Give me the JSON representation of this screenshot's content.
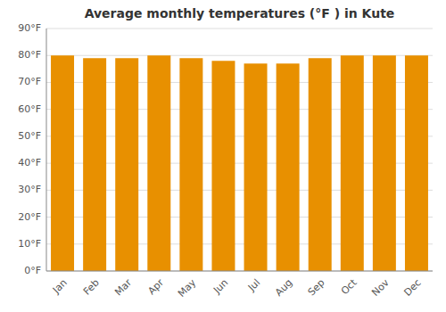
{
  "chart_data": {
    "type": "bar",
    "title": "Average monthly temperatures (°F ) in Kute",
    "categories": [
      "Jan",
      "Feb",
      "Mar",
      "Apr",
      "May",
      "Jun",
      "Jul",
      "Aug",
      "Sep",
      "Oct",
      "Nov",
      "Dec"
    ],
    "values": [
      80,
      79,
      79,
      80,
      79,
      78,
      77,
      77,
      79,
      80,
      80,
      80
    ],
    "color": "#E89000",
    "ylim": [
      0,
      90
    ],
    "yticks": [
      {
        "value": 0,
        "label": "0°F"
      },
      {
        "value": 10,
        "label": "10°F"
      },
      {
        "value": 20,
        "label": "20°F"
      },
      {
        "value": 30,
        "label": "30°F"
      },
      {
        "value": 40,
        "label": "40°F"
      },
      {
        "value": 50,
        "label": "50°F"
      },
      {
        "value": 60,
        "label": "60°F"
      },
      {
        "value": 70,
        "label": "70°F"
      },
      {
        "value": 80,
        "label": "80°F"
      },
      {
        "value": 90,
        "label": "90°F"
      }
    ],
    "grid": true
  }
}
